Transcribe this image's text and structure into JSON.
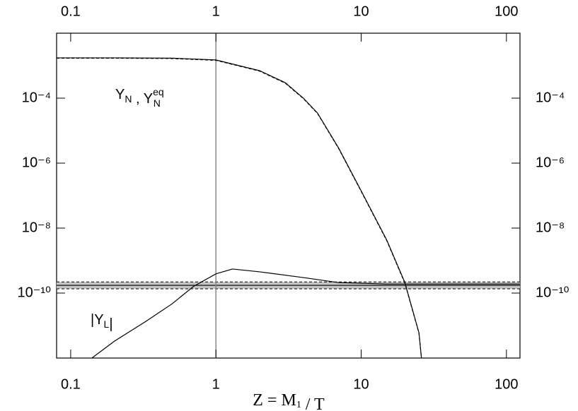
{
  "chart_data": {
    "type": "line",
    "xscale": "log",
    "yscale": "log",
    "xlim": [
      0.08,
      124
    ],
    "ylim": [
      1e-12,
      0.01
    ],
    "xticks": [
      0.1,
      1,
      10,
      100
    ],
    "yticks": [
      {
        "value": 0.0001,
        "label": "10⁻⁴"
      },
      {
        "value": 1e-06,
        "label": "10⁻⁶"
      },
      {
        "value": 1e-08,
        "label": "10⁻⁸"
      },
      {
        "value": 1e-10,
        "label": "10⁻¹⁰"
      }
    ],
    "xlabel": [
      {
        "text": "Z = M"
      },
      {
        "sub": "1"
      },
      {
        "text": " / T"
      }
    ],
    "annotations": [
      [
        {
          "text": "Y"
        },
        {
          "sub": "N"
        },
        {
          "text": " ,  Y"
        },
        {
          "sub": "N",
          "sup": "eq"
        }
      ],
      [
        {
          "text": "|Y"
        },
        {
          "sub": "L"
        },
        {
          "text": "|"
        }
      ]
    ],
    "vlines": [
      1
    ],
    "bands": [
      {
        "lower": 1.35e-10,
        "upper": 2.2e-10,
        "center": 1.73e-10,
        "color": "#c4c4c4"
      }
    ],
    "series": [
      {
        "color": "#000000",
        "dash": false,
        "x": [
          0.08,
          0.2,
          0.5,
          1,
          2,
          3,
          4,
          5,
          7,
          10,
          15,
          20,
          25,
          26
        ],
        "values": [
          0.00174,
          0.00174,
          0.0017,
          0.0015,
          0.0007,
          0.0003,
          0.0001,
          3.5e-05,
          2.9e-06,
          1.4e-07,
          4.3e-09,
          2.1e-10,
          6e-12,
          1e-12
        ]
      },
      {
        "color": "#000000",
        "dash": true,
        "x": [
          0.08,
          0.2,
          0.5,
          1,
          2,
          3,
          4,
          5,
          7,
          10,
          15,
          20,
          25,
          26
        ],
        "values": [
          0.0017,
          0.0017,
          0.00166,
          0.00146,
          0.00068,
          0.00029,
          9.7e-05,
          3.4e-05,
          2.8e-06,
          1.35e-07,
          4.1e-09,
          2e-10,
          5.8e-12,
          1e-12
        ]
      },
      {
        "color": "#000000",
        "dash": false,
        "x": [
          0.14,
          0.2,
          0.33,
          0.5,
          0.7,
          1,
          1.3,
          2,
          4,
          7,
          15,
          124
        ],
        "values": [
          1e-12,
          3.3e-12,
          1.35e-11,
          4.7e-11,
          1.6e-10,
          3.9e-10,
          5.5e-10,
          4.5e-10,
          3e-10,
          2.1e-10,
          1.9e-10,
          1.9e-10
        ]
      }
    ]
  }
}
